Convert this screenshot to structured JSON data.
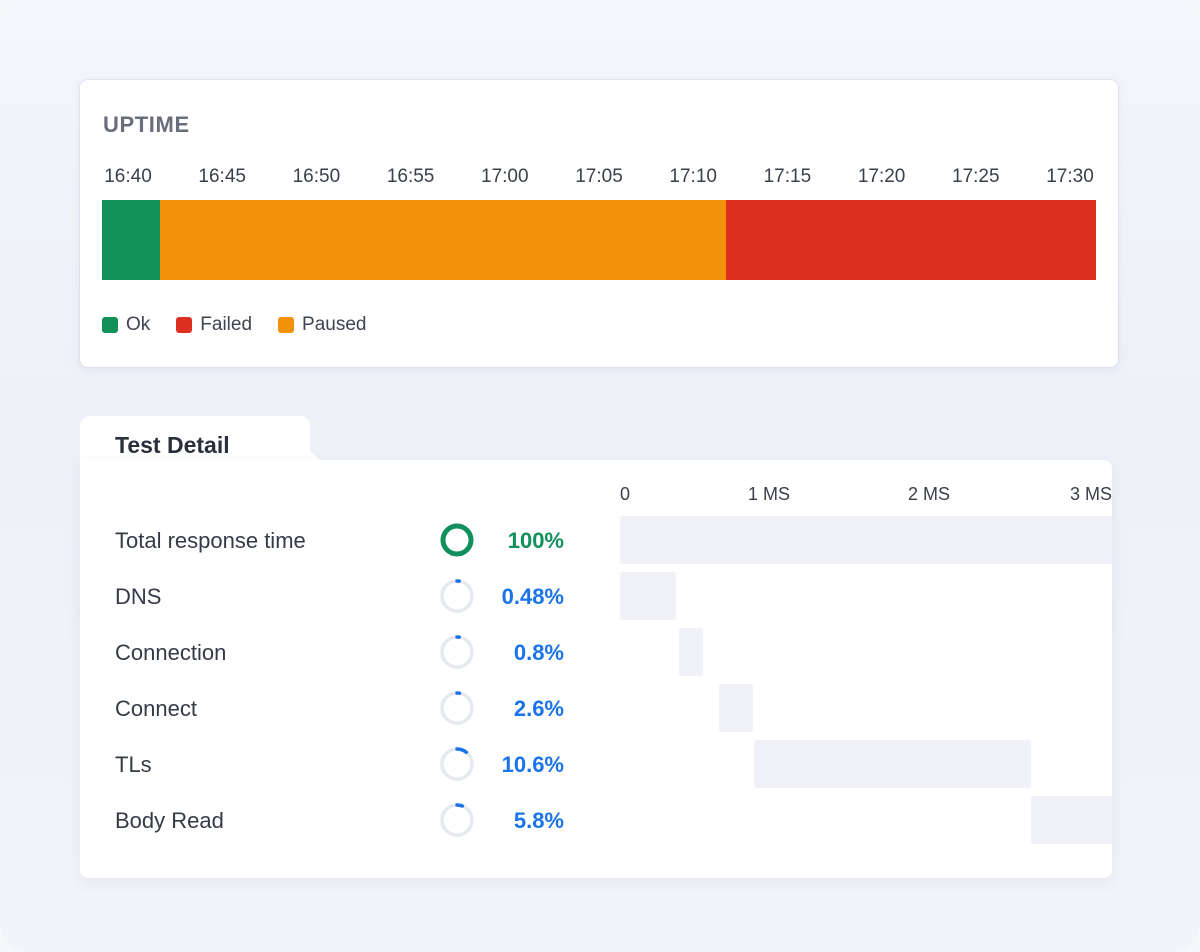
{
  "uptime": {
    "title": "UPTIME",
    "time_ticks": [
      "16:40",
      "16:45",
      "16:50",
      "16:55",
      "17:00",
      "17:05",
      "17:10",
      "17:15",
      "17:20",
      "17:25",
      "17:30"
    ],
    "segments": [
      {
        "status": "Ok",
        "start": "16:40",
        "end": "16:43"
      },
      {
        "status": "Paused",
        "start": "16:43",
        "end": "17:12"
      },
      {
        "status": "Failed",
        "start": "17:12",
        "end": "17:31"
      }
    ],
    "legend": [
      {
        "label": "Ok",
        "color": "#0f9157"
      },
      {
        "label": "Failed",
        "color": "#dc2f21"
      },
      {
        "label": "Paused",
        "color": "#f4910a"
      }
    ]
  },
  "test_detail": {
    "tab_label": "Test Detail",
    "ms_ticks": [
      "0",
      "1 MS",
      "2 MS",
      "3 MS"
    ],
    "rows": [
      {
        "label": "Total response time",
        "percent": "100%",
        "value": 1,
        "color": "#10905a",
        "start_ms": 0,
        "end_ms": 3.2
      },
      {
        "label": "DNS",
        "percent": "0.48%",
        "value": 0.0048,
        "color": "#1a73e8",
        "start_ms": 0,
        "end_ms": 0.35
      },
      {
        "label": "Connection",
        "percent": "0.8%",
        "value": 0.008,
        "color": "#1a73e8",
        "start_ms": 0.37,
        "end_ms": 0.52
      },
      {
        "label": "Connect",
        "percent": "2.6%",
        "value": 0.026,
        "color": "#1a73e8",
        "start_ms": 0.62,
        "end_ms": 0.83
      },
      {
        "label": "TLs",
        "percent": "10.6%",
        "value": 0.106,
        "color": "#1a73e8",
        "start_ms": 0.84,
        "end_ms": 2.57
      },
      {
        "label": "Body Read",
        "percent": "5.8%",
        "value": 0.058,
        "color": "#1a73e8",
        "start_ms": 2.57,
        "end_ms": 3.2
      }
    ]
  }
}
